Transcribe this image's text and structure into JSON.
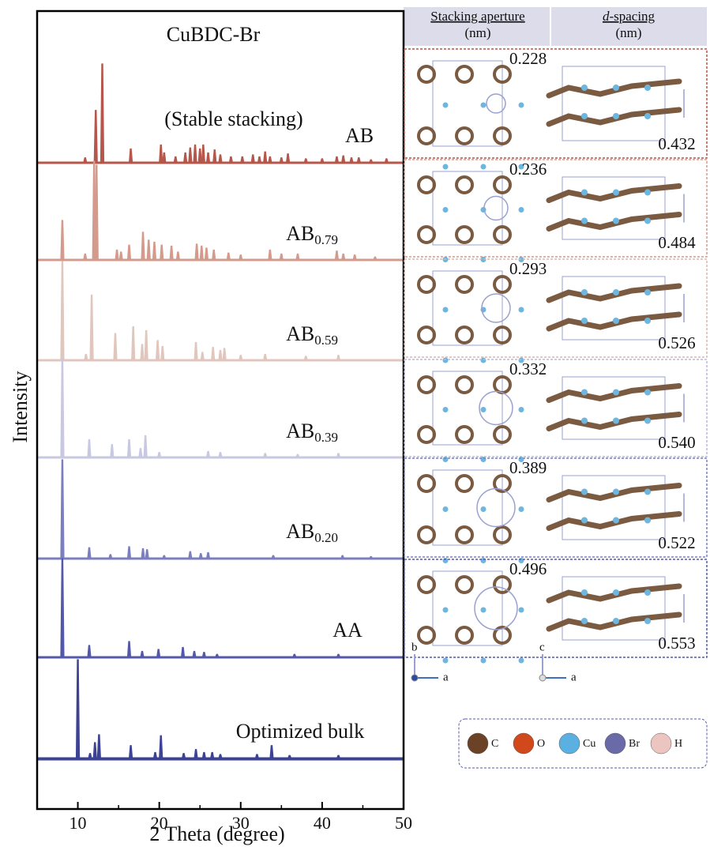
{
  "chart_data": {
    "type": "line",
    "title": "CuBDC-Br",
    "subtitle": "(Stable stacking)",
    "x_label": "2 Theta (degree)",
    "y_label": "Intensity",
    "xlim": [
      5,
      50
    ],
    "xticks": [
      10,
      20,
      30,
      40,
      50
    ],
    "series": [
      {
        "name": "AB",
        "color": "#b5574a",
        "x": [
          10.9,
          12.2,
          13.0,
          16.5,
          20.2,
          20.6,
          22.0,
          23.2,
          23.8,
          24.4,
          25.0,
          25.4,
          26.0,
          26.8,
          27.5,
          28.8,
          30.2,
          31.5,
          32.3,
          33.0,
          33.6,
          35.0,
          35.8,
          38.0,
          40.0,
          41.8,
          42.6,
          43.6,
          44.5,
          46.0,
          47.9
        ],
        "values": [
          5,
          53,
          100,
          14,
          18,
          10,
          6,
          10,
          15,
          18,
          14,
          18,
          10,
          13,
          8,
          6,
          6,
          8,
          6,
          11,
          6,
          5,
          9,
          4,
          4,
          6,
          7,
          5,
          5,
          3,
          4
        ]
      },
      {
        "name": "AB",
        "name_sub": "0.79",
        "color": "#d49a8c",
        "x": [
          8.1,
          10.9,
          12.0,
          12.3,
          14.8,
          15.3,
          16.3,
          18.0,
          18.7,
          19.4,
          20.3,
          21.5,
          22.3,
          24.6,
          25.2,
          25.8,
          26.7,
          28.5,
          30.0,
          33.6,
          35.0,
          37.0,
          41.8,
          42.6,
          44.0,
          46.5
        ],
        "values": [
          40,
          6,
          100,
          96,
          10,
          8,
          15,
          28,
          20,
          18,
          15,
          14,
          8,
          16,
          14,
          12,
          10,
          7,
          5,
          10,
          6,
          6,
          9,
          6,
          5,
          3
        ]
      },
      {
        "name": "AB",
        "name_sub": "0.59",
        "color": "#e0c6bd",
        "x": [
          8.1,
          11.0,
          11.7,
          14.6,
          16.8,
          17.9,
          18.4,
          19.8,
          20.4,
          24.5,
          25.3,
          26.6,
          27.5,
          28.0,
          30.0,
          33.0,
          38.0,
          42.0
        ],
        "values": [
          100,
          6,
          66,
          27,
          34,
          16,
          30,
          20,
          14,
          18,
          8,
          13,
          10,
          12,
          5,
          6,
          4,
          5
        ]
      },
      {
        "name": "AB",
        "name_sub": "0.39",
        "color": "#c8c8e2",
        "x": [
          8.1,
          11.4,
          14.2,
          16.3,
          17.7,
          18.3,
          20.0,
          26.0,
          27.5,
          33.0,
          37.0,
          42.0
        ],
        "values": [
          100,
          18,
          13,
          18,
          9,
          22,
          5,
          6,
          5,
          4,
          3,
          4
        ]
      },
      {
        "name": "AB",
        "name_sub": "0.20",
        "color": "#7b7fc0",
        "x": [
          8.1,
          11.4,
          14.0,
          16.3,
          18.0,
          18.5,
          20.6,
          23.8,
          25.1,
          26.0,
          34.0,
          42.5,
          46.0
        ],
        "values": [
          100,
          11,
          4,
          12,
          10,
          9,
          3,
          7,
          5,
          6,
          3,
          3,
          2
        ]
      },
      {
        "name": "AA",
        "color": "#5458a8",
        "x": [
          8.1,
          11.4,
          16.3,
          17.9,
          19.9,
          22.9,
          24.3,
          25.5,
          27.1,
          36.6,
          42.0
        ],
        "values": [
          100,
          12,
          16,
          6,
          8,
          10,
          6,
          5,
          3,
          3,
          3
        ]
      },
      {
        "name": "Optimized bulk",
        "color": "#3d4394",
        "x": [
          10.0,
          11.5,
          12.1,
          12.6,
          16.5,
          19.5,
          20.2,
          23.0,
          24.5,
          25.5,
          26.5,
          27.5,
          32.0,
          33.8,
          36.0,
          42.0
        ],
        "values": [
          100,
          5,
          16,
          24,
          13,
          6,
          23,
          5,
          9,
          6,
          6,
          4,
          4,
          13,
          3,
          3
        ]
      }
    ]
  },
  "panel": {
    "header": {
      "aperture": "Stacking aperture",
      "aperture_unit": "(nm)",
      "d_italic": "d",
      "d_rest": "-spacing",
      "d_unit": "(nm)"
    },
    "rows": [
      {
        "aperture": "0.228",
        "d_spacing": "0.432"
      },
      {
        "aperture": "0.236",
        "d_spacing": "0.484"
      },
      {
        "aperture": "0.293",
        "d_spacing": "0.526"
      },
      {
        "aperture": "0.332",
        "d_spacing": "0.540"
      },
      {
        "aperture": "0.389",
        "d_spacing": "0.522"
      },
      {
        "aperture": "0.496",
        "d_spacing": "0.553"
      }
    ],
    "axes_left": [
      "b",
      "a"
    ],
    "axes_right": [
      "c",
      "a"
    ],
    "legend": [
      "C",
      "O",
      "Cu",
      "Br",
      "H"
    ]
  }
}
